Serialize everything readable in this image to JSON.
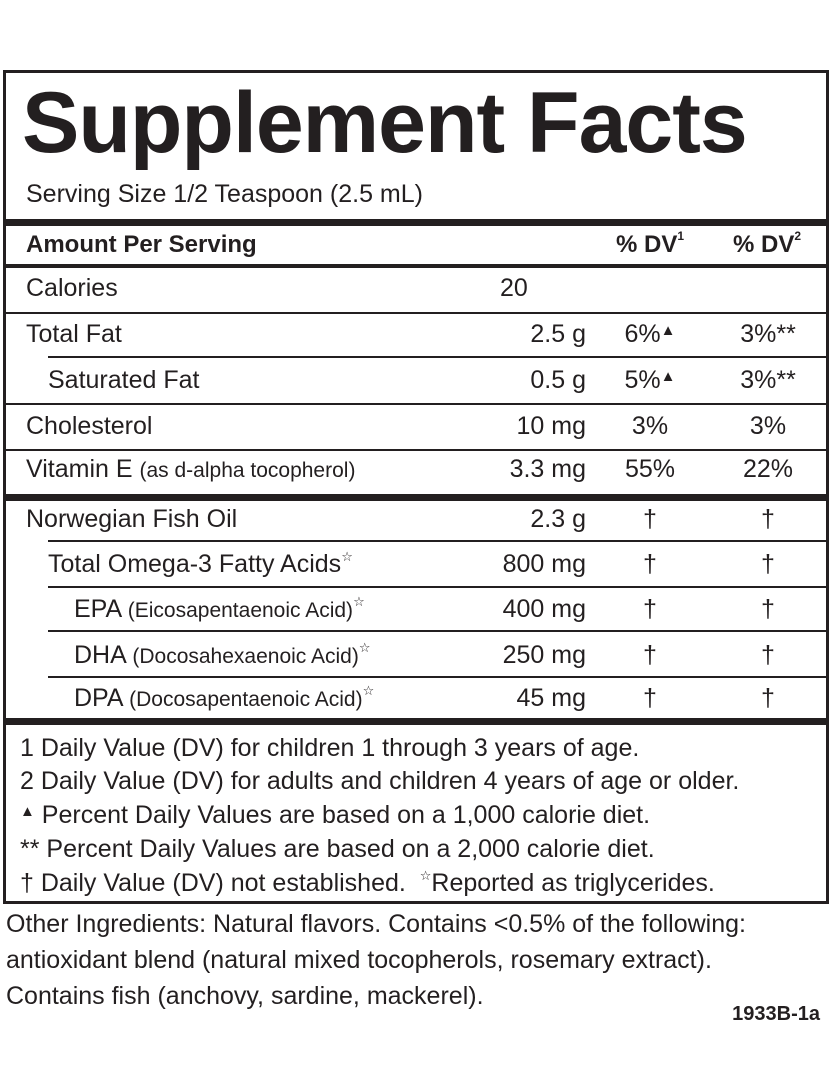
{
  "title": "Supplement Facts",
  "serving_size": "Serving Size 1/2 Teaspoon (2.5 mL)",
  "header": {
    "amount_per_serving": "Amount Per Serving",
    "dv1": "% DV",
    "dv1_sup": "1",
    "dv2": "% DV",
    "dv2_sup": "2"
  },
  "rows": [
    {
      "name": "Calories",
      "sub": "",
      "amount": "20",
      "dv1": "",
      "dv2": ""
    },
    {
      "name": "Total Fat",
      "sub": "",
      "amount": "2.5 g",
      "dv1": "6%",
      "dv1_mark": "▲",
      "dv2": "3%**"
    },
    {
      "name": "Saturated Fat",
      "sub": "",
      "amount": "0.5 g",
      "dv1": "5%",
      "dv1_mark": "▲",
      "dv2": "3%**"
    },
    {
      "name": "Cholesterol",
      "sub": "",
      "amount": "10 mg",
      "dv1": "3%",
      "dv2": "3%"
    },
    {
      "name": "Vitamin E",
      "sub": "(as d-alpha tocopherol)",
      "amount": "3.3 mg",
      "dv1": "55%",
      "dv2": "22%"
    },
    {
      "name": "Norwegian Fish Oil",
      "sub": "",
      "amount": "2.3 g",
      "dv1": "†",
      "dv2": "†"
    },
    {
      "name": "Total Omega-3 Fatty Acids",
      "sub": "",
      "star": "☆",
      "amount": "800 mg",
      "dv1": "†",
      "dv2": "†"
    },
    {
      "name": "EPA",
      "sub": "(Eicosapentaenoic Acid)",
      "star": "☆",
      "amount": "400 mg",
      "dv1": "†",
      "dv2": "†"
    },
    {
      "name": "DHA",
      "sub": "(Docosahexaenoic Acid)",
      "star": "☆",
      "amount": "250 mg",
      "dv1": "†",
      "dv2": "†"
    },
    {
      "name": "DPA",
      "sub": "(Docosapentaenoic Acid)",
      "star": "☆",
      "amount": "45 mg",
      "dv1": "†",
      "dv2": "†"
    }
  ],
  "footnotes": {
    "line1": "1 Daily Value (DV) for children 1 through 3 years of age.",
    "line2": "2 Daily Value (DV) for adults and children 4 years of age or older.",
    "line3_mark": "▲",
    "line3": " Percent Daily Values are based on a 1,000 calorie diet.",
    "line4": "** Percent Daily Values are based on a 2,000 calorie diet.",
    "line5a": "† Daily Value (DV) not established.",
    "line5_star": "☆",
    "line5b": "Reported as triglycerides."
  },
  "other_ingredients": {
    "line1": "Other Ingredients: Natural flavors. Contains <0.5% of the following:",
    "line2": "antioxidant blend (natural mixed tocopherols, rosemary extract).",
    "line3": "Contains fish (anchovy, sardine, mackerel)."
  },
  "code": "1933B-1a"
}
